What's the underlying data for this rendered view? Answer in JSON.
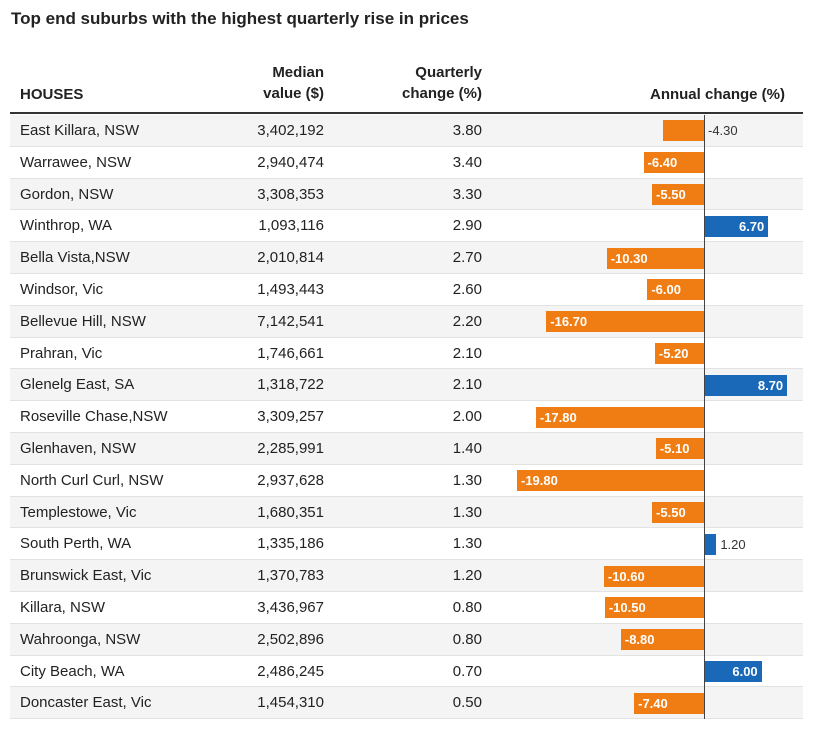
{
  "title": "Top end suburbs with the highest quarterly rise in prices",
  "headers": {
    "houses": "HOUSES",
    "median_line1": "Median",
    "median_line2": "value ($)",
    "quarterly_line1": "Quarterly",
    "quarterly_line2": "change (%)",
    "annual": "Annual change (%)"
  },
  "colors": {
    "negative": "#ef7d13",
    "positive": "#1a68b8"
  },
  "rows": [
    {
      "suburb": "East Killara, NSW",
      "median": "3,402,192",
      "quarterly": "3.80",
      "annual_label": "-4.30"
    },
    {
      "suburb": "Warrawee, NSW",
      "median": "2,940,474",
      "quarterly": "3.40",
      "annual_label": "-6.40"
    },
    {
      "suburb": "Gordon, NSW",
      "median": "3,308,353",
      "quarterly": "3.30",
      "annual_label": "-5.50"
    },
    {
      "suburb": "Winthrop, WA",
      "median": "1,093,116",
      "quarterly": "2.90",
      "annual_label": "6.70"
    },
    {
      "suburb": "Bella Vista,NSW",
      "median": "2,010,814",
      "quarterly": "2.70",
      "annual_label": "-10.30"
    },
    {
      "suburb": "Windsor, Vic",
      "median": "1,493,443",
      "quarterly": "2.60",
      "annual_label": "-6.00"
    },
    {
      "suburb": "Bellevue Hill, NSW",
      "median": "7,142,541",
      "quarterly": "2.20",
      "annual_label": "-16.70"
    },
    {
      "suburb": "Prahran, Vic",
      "median": "1,746,661",
      "quarterly": "2.10",
      "annual_label": "-5.20"
    },
    {
      "suburb": "Glenelg East, SA",
      "median": "1,318,722",
      "quarterly": "2.10",
      "annual_label": "8.70"
    },
    {
      "suburb": "Roseville Chase,NSW",
      "median": "3,309,257",
      "quarterly": "2.00",
      "annual_label": "-17.80"
    },
    {
      "suburb": "Glenhaven, NSW",
      "median": "2,285,991",
      "quarterly": "1.40",
      "annual_label": "-5.10"
    },
    {
      "suburb": "North Curl Curl, NSW",
      "median": "2,937,628",
      "quarterly": "1.30",
      "annual_label": "-19.80"
    },
    {
      "suburb": "Templestowe, Vic",
      "median": "1,680,351",
      "quarterly": "1.30",
      "annual_label": "-5.50"
    },
    {
      "suburb": "South Perth, WA",
      "median": "1,335,186",
      "quarterly": "1.30",
      "annual_label": "1.20"
    },
    {
      "suburb": "Brunswick East, Vic",
      "median": "1,370,783",
      "quarterly": "1.20",
      "annual_label": "-10.60"
    },
    {
      "suburb": "Killara, NSW",
      "median": "3,436,967",
      "quarterly": "0.80",
      "annual_label": "-10.50"
    },
    {
      "suburb": "Wahroonga, NSW",
      "median": "2,502,896",
      "quarterly": "0.80",
      "annual_label": "-8.80"
    },
    {
      "suburb": "City Beach, WA",
      "median": "2,486,245",
      "quarterly": "0.70",
      "annual_label": "6.00"
    },
    {
      "suburb": "Doncaster East, Vic",
      "median": "1,454,310",
      "quarterly": "0.50",
      "annual_label": "-7.40"
    }
  ],
  "chart_data": {
    "type": "bar",
    "orientation": "horizontal",
    "title": "Top end suburbs with the highest quarterly rise in prices",
    "categories": [
      "East Killara, NSW",
      "Warrawee, NSW",
      "Gordon, NSW",
      "Winthrop, WA",
      "Bella Vista,NSW",
      "Windsor, Vic",
      "Bellevue Hill, NSW",
      "Prahran, Vic",
      "Glenelg East, SA",
      "Roseville Chase,NSW",
      "Glenhaven, NSW",
      "North Curl Curl, NSW",
      "Templestowe, Vic",
      "South Perth, WA",
      "Brunswick East, Vic",
      "Killara, NSW",
      "Wahroonga, NSW",
      "City Beach, WA",
      "Doncaster East, Vic"
    ],
    "series": [
      {
        "name": "Annual change (%)",
        "values": [
          -4.3,
          -6.4,
          -5.5,
          6.7,
          -10.3,
          -6.0,
          -16.7,
          -5.2,
          8.7,
          -17.8,
          -5.1,
          -19.8,
          -5.5,
          1.2,
          -10.6,
          -10.5,
          -8.8,
          6.0,
          -7.4
        ]
      }
    ],
    "xlim": [
      -19.8,
      8.7
    ],
    "grid": false,
    "legend": "none"
  }
}
